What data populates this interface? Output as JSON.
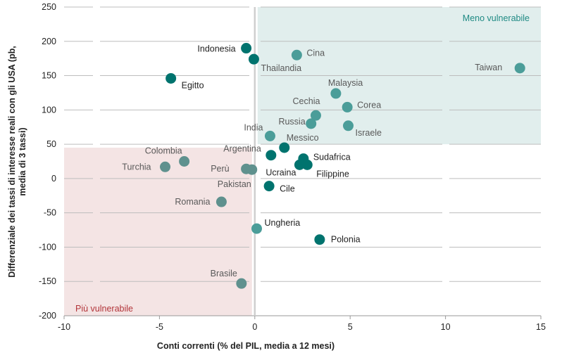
{
  "chart_data": {
    "type": "scatter",
    "xlabel": "Conti correnti (% del PIL, media a 12 mesi)",
    "ylabel_lines": [
      "Differenziale dei tassi di interesse reali con gli USA (pb,",
      "media di 3 tassi)"
    ],
    "xlim": [
      -10,
      15
    ],
    "ylim": [
      -200,
      250
    ],
    "xticks": [
      -10,
      -5,
      0,
      5,
      10,
      15
    ],
    "yticks": [
      -200,
      -150,
      -100,
      -50,
      0,
      50,
      100,
      150,
      200,
      250
    ],
    "grid": "horizontal",
    "regions": [
      {
        "label": "Meno vulnerabile",
        "x": [
          0,
          15
        ],
        "y": [
          50,
          250
        ],
        "color": "#e1eeed",
        "label_color": "#1f8a84"
      },
      {
        "label": "Più vulnerabile",
        "x": [
          -10,
          0
        ],
        "y": [
          -200,
          45
        ],
        "color": "#f4e4e4",
        "label_color": "#b2353a"
      }
    ],
    "colors": {
      "dark": "#00736e",
      "medium": "#4b9d99",
      "gray": "#5f918e",
      "label_dark": "#222222",
      "label_gray": "#595959",
      "grid": "#bdbdbd",
      "zero_axis": "#cfcfcf"
    },
    "points": [
      {
        "name": "Indonesia",
        "x": -0.45,
        "y": 190,
        "group": "dark"
      },
      {
        "name": "Thailandia",
        "x": -0.05,
        "y": 174,
        "group": "dark"
      },
      {
        "name": "Cina",
        "x": 2.2,
        "y": 180,
        "group": "medium"
      },
      {
        "name": "Egitto",
        "x": -4.4,
        "y": 146,
        "group": "dark"
      },
      {
        "name": "Taiwan",
        "x": 13.9,
        "y": 161,
        "group": "medium"
      },
      {
        "name": "Malaysia",
        "x": 4.25,
        "y": 124,
        "group": "medium"
      },
      {
        "name": "Corea",
        "x": 4.85,
        "y": 104,
        "group": "medium"
      },
      {
        "name": "Cechia",
        "x": 3.2,
        "y": 92,
        "group": "medium"
      },
      {
        "name": "Russia",
        "x": 2.95,
        "y": 80,
        "group": "medium"
      },
      {
        "name": "Israele",
        "x": 4.9,
        "y": 77,
        "group": "medium"
      },
      {
        "name": "India",
        "x": 0.8,
        "y": 62,
        "group": "medium"
      },
      {
        "name": "Messico",
        "x": 1.55,
        "y": 45,
        "group": "dark"
      },
      {
        "name": "Argentina",
        "x": 0.85,
        "y": 34,
        "group": "dark"
      },
      {
        "name": "Sudafrica",
        "x": 2.55,
        "y": 29,
        "group": "dark"
      },
      {
        "name": "Ucraina",
        "x": 2.35,
        "y": 20,
        "group": "dark"
      },
      {
        "name": "Filippine",
        "x": 2.75,
        "y": 20,
        "group": "dark"
      },
      {
        "name": "Colombia",
        "x": -3.7,
        "y": 25,
        "group": "gray"
      },
      {
        "name": "Turchia",
        "x": -4.7,
        "y": 17,
        "group": "gray"
      },
      {
        "name": "Perù",
        "x": -0.45,
        "y": 14,
        "group": "gray"
      },
      {
        "name": "Pakistan",
        "x": -0.15,
        "y": 13,
        "group": "gray"
      },
      {
        "name": "Cile",
        "x": 0.75,
        "y": -11,
        "group": "dark"
      },
      {
        "name": "Romania",
        "x": -1.75,
        "y": -34,
        "group": "gray"
      },
      {
        "name": "Ungheria",
        "x": 0.1,
        "y": -73,
        "group": "medium"
      },
      {
        "name": "Polonia",
        "x": 3.4,
        "y": -89,
        "group": "dark"
      },
      {
        "name": "Brasile",
        "x": -0.7,
        "y": -153,
        "group": "gray"
      }
    ]
  }
}
